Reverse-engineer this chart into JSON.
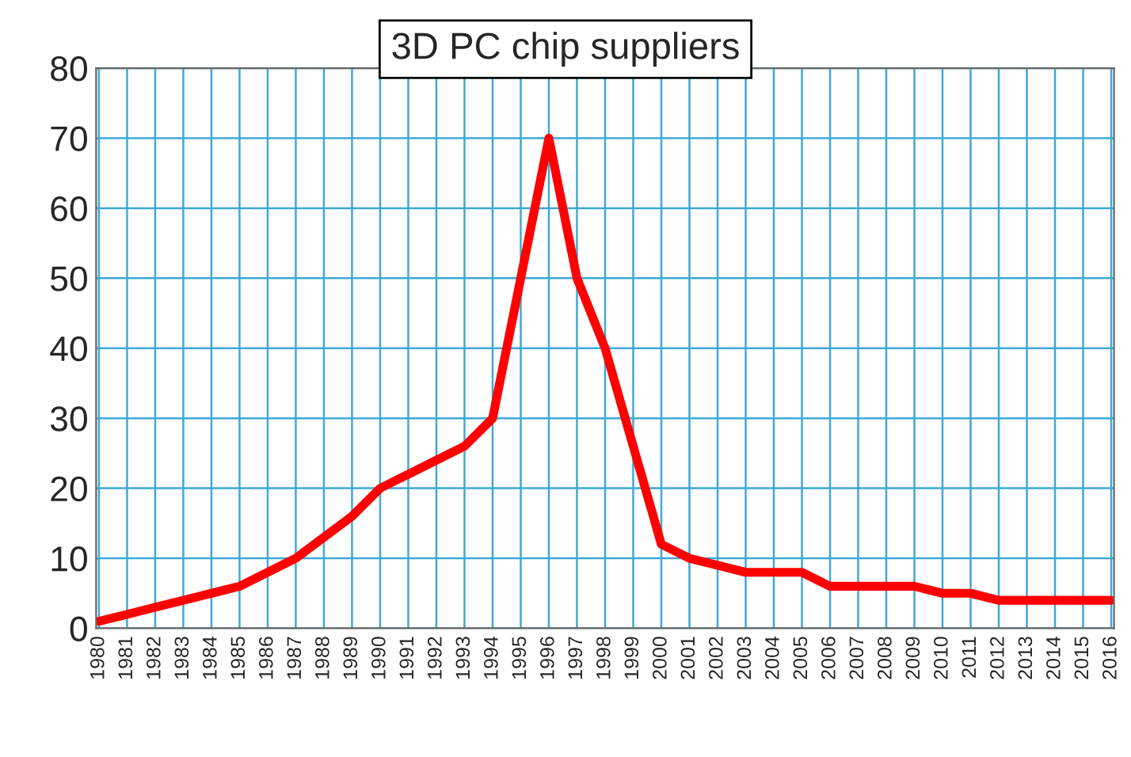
{
  "chart_data": {
    "type": "line",
    "title": "3D PC chip suppliers",
    "categories": [
      "1980",
      "1981",
      "1982",
      "1983",
      "1984",
      "1985",
      "1986",
      "1987",
      "1988",
      "1989",
      "1990",
      "1991",
      "1992",
      "1993",
      "1994",
      "1995",
      "1996",
      "1997",
      "1998",
      "1999",
      "2000",
      "2001",
      "2002",
      "2003",
      "2004",
      "2005",
      "2006",
      "2007",
      "2008",
      "2009",
      "2010",
      "2011",
      "2012",
      "2013",
      "2014",
      "2015",
      "2016"
    ],
    "series": [
      {
        "color": "#ff0000",
        "values": [
          1,
          2,
          3,
          4,
          5,
          6,
          8,
          10,
          13,
          16,
          20,
          22,
          24,
          26,
          30,
          50,
          70,
          50,
          40,
          26,
          12,
          10,
          9,
          8,
          8,
          8,
          6,
          6,
          6,
          6,
          5,
          5,
          4,
          4,
          4,
          4,
          4
        ]
      }
    ],
    "ylim": [
      0,
      80
    ],
    "yticks": [
      0,
      10,
      20,
      30,
      40,
      50,
      60,
      70,
      80
    ],
    "grid": true,
    "marker": "none",
    "line_style": "solid"
  }
}
